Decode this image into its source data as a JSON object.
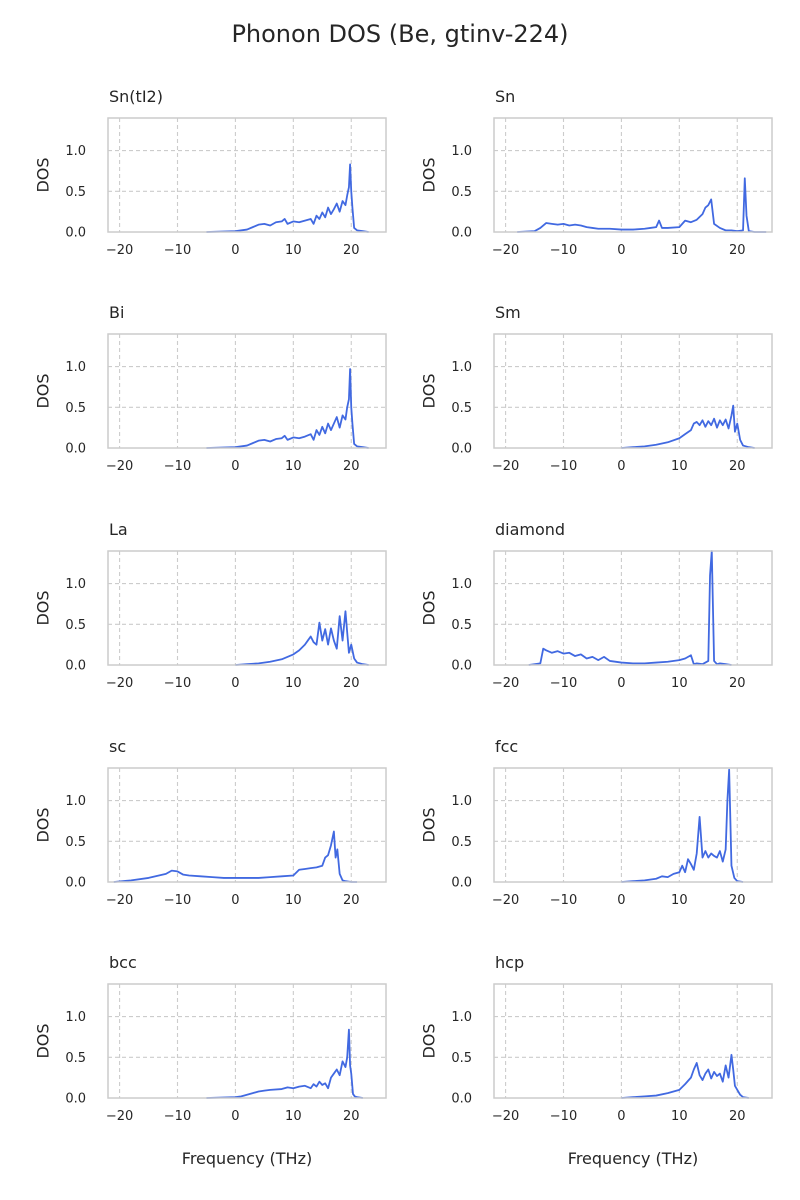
{
  "suptitle": "Phonon DOS (Be, gtinv-224)",
  "line_color": "#4169E1",
  "chart_data": [
    {
      "type": "line",
      "title": "Sn(tI2)",
      "xlabel": "",
      "ylabel": "DOS",
      "xlim": [
        -22,
        26
      ],
      "ylim": [
        0,
        1.4
      ],
      "xticks": [
        -20,
        -10,
        0,
        10,
        20
      ],
      "yticks": [
        0.0,
        0.5,
        1.0
      ],
      "grid": "dashed",
      "series": [
        {
          "x": [
            -5,
            0,
            2,
            3,
            4,
            5,
            6,
            7,
            8,
            8.5,
            9,
            10,
            11,
            12,
            13,
            13.5,
            14,
            14.5,
            15,
            15.5,
            16,
            16.5,
            17,
            17.5,
            18,
            18.5,
            19,
            19.3,
            19.6,
            19.8,
            20,
            20.2,
            20.5,
            21,
            22,
            23
          ],
          "y": [
            0,
            0.01,
            0.03,
            0.06,
            0.09,
            0.1,
            0.08,
            0.12,
            0.13,
            0.16,
            0.1,
            0.13,
            0.12,
            0.14,
            0.16,
            0.1,
            0.2,
            0.16,
            0.24,
            0.18,
            0.3,
            0.22,
            0.28,
            0.35,
            0.25,
            0.38,
            0.33,
            0.45,
            0.55,
            0.83,
            0.5,
            0.3,
            0.05,
            0.02,
            0.01,
            0
          ]
        }
      ]
    },
    {
      "type": "line",
      "title": "Sn",
      "xlabel": "",
      "ylabel": "DOS",
      "xlim": [
        -22,
        26
      ],
      "ylim": [
        0,
        1.4
      ],
      "xticks": [
        -20,
        -10,
        0,
        10,
        20
      ],
      "yticks": [
        0.0,
        0.5,
        1.0
      ],
      "grid": "dashed",
      "series": [
        {
          "x": [
            -18,
            -15,
            -14,
            -13,
            -12,
            -11,
            -10,
            -9,
            -8,
            -7,
            -6,
            -5,
            -4,
            -2,
            0,
            2,
            4,
            5,
            6,
            6.5,
            7,
            8,
            10,
            11,
            12,
            13,
            14,
            14.5,
            15,
            15.5,
            16,
            17,
            18,
            19,
            20,
            21,
            21.3,
            21.6,
            22,
            23,
            25
          ],
          "y": [
            0,
            0.01,
            0.05,
            0.11,
            0.1,
            0.09,
            0.1,
            0.08,
            0.09,
            0.08,
            0.06,
            0.05,
            0.04,
            0.04,
            0.03,
            0.03,
            0.04,
            0.05,
            0.06,
            0.14,
            0.05,
            0.05,
            0.06,
            0.14,
            0.12,
            0.15,
            0.22,
            0.3,
            0.33,
            0.4,
            0.1,
            0.05,
            0.02,
            0.02,
            0.01,
            0.02,
            0.66,
            0.2,
            0.01,
            0,
            0
          ]
        }
      ]
    },
    {
      "type": "line",
      "title": "Bi",
      "xlabel": "",
      "ylabel": "DOS",
      "xlim": [
        -22,
        26
      ],
      "ylim": [
        0,
        1.4
      ],
      "xticks": [
        -20,
        -10,
        0,
        10,
        20
      ],
      "yticks": [
        0.0,
        0.5,
        1.0
      ],
      "grid": "dashed",
      "series": [
        {
          "x": [
            -5,
            0,
            2,
            3,
            4,
            5,
            6,
            7,
            8,
            8.5,
            9,
            10,
            11,
            12,
            13,
            13.5,
            14,
            14.5,
            15,
            15.5,
            16,
            16.5,
            17,
            17.5,
            18,
            18.5,
            19,
            19.3,
            19.6,
            19.8,
            20,
            20.2,
            20.5,
            21,
            22,
            23
          ],
          "y": [
            0,
            0.01,
            0.03,
            0.06,
            0.09,
            0.1,
            0.08,
            0.11,
            0.12,
            0.15,
            0.1,
            0.13,
            0.12,
            0.14,
            0.17,
            0.1,
            0.22,
            0.16,
            0.26,
            0.18,
            0.3,
            0.22,
            0.3,
            0.38,
            0.25,
            0.4,
            0.35,
            0.5,
            0.6,
            0.97,
            0.5,
            0.3,
            0.05,
            0.02,
            0.01,
            0
          ]
        }
      ]
    },
    {
      "type": "line",
      "title": "Sm",
      "xlabel": "",
      "ylabel": "DOS",
      "xlim": [
        -22,
        26
      ],
      "ylim": [
        0,
        1.4
      ],
      "xticks": [
        -20,
        -10,
        0,
        10,
        20
      ],
      "yticks": [
        0.0,
        0.5,
        1.0
      ],
      "grid": "dashed",
      "series": [
        {
          "x": [
            0,
            2,
            4,
            6,
            8,
            10,
            11,
            12,
            12.5,
            13,
            13.5,
            14,
            14.5,
            15,
            15.5,
            16,
            16.5,
            17,
            17.5,
            18,
            18.5,
            19,
            19.3,
            19.6,
            20,
            20.5,
            21,
            22,
            23
          ],
          "y": [
            0,
            0.01,
            0.02,
            0.04,
            0.07,
            0.12,
            0.17,
            0.22,
            0.3,
            0.32,
            0.28,
            0.34,
            0.26,
            0.33,
            0.28,
            0.36,
            0.25,
            0.34,
            0.28,
            0.35,
            0.24,
            0.4,
            0.52,
            0.2,
            0.3,
            0.1,
            0.03,
            0.01,
            0
          ]
        }
      ]
    },
    {
      "type": "line",
      "title": "La",
      "xlabel": "",
      "ylabel": "DOS",
      "xlim": [
        -22,
        26
      ],
      "ylim": [
        0,
        1.4
      ],
      "xticks": [
        -20,
        -10,
        0,
        10,
        20
      ],
      "yticks": [
        0.0,
        0.5,
        1.0
      ],
      "grid": "dashed",
      "series": [
        {
          "x": [
            0,
            2,
            4,
            6,
            8,
            10,
            11,
            12,
            12.5,
            13,
            13.5,
            14,
            14.5,
            15,
            15.5,
            16,
            16.5,
            17,
            17.5,
            18,
            18.5,
            19,
            19.3,
            19.6,
            20,
            20.5,
            21,
            22,
            23
          ],
          "y": [
            0,
            0.01,
            0.02,
            0.04,
            0.07,
            0.13,
            0.18,
            0.25,
            0.3,
            0.35,
            0.28,
            0.25,
            0.52,
            0.3,
            0.44,
            0.25,
            0.45,
            0.3,
            0.2,
            0.6,
            0.3,
            0.66,
            0.4,
            0.15,
            0.25,
            0.08,
            0.03,
            0.01,
            0
          ]
        }
      ]
    },
    {
      "type": "line",
      "title": "diamond",
      "xlabel": "",
      "ylabel": "DOS",
      "xlim": [
        -22,
        26
      ],
      "ylim": [
        0,
        1.4
      ],
      "xticks": [
        -20,
        -10,
        0,
        10,
        20
      ],
      "yticks": [
        0.0,
        0.5,
        1.0
      ],
      "grid": "dashed",
      "series": [
        {
          "x": [
            -16,
            -14,
            -13.5,
            -13,
            -12,
            -11,
            -10,
            -9,
            -8,
            -7,
            -6,
            -5,
            -4,
            -3,
            -2,
            0,
            2,
            4,
            6,
            8,
            10,
            11,
            12,
            12.5,
            13,
            14,
            15,
            15.3,
            15.6,
            16,
            16.5,
            17,
            18,
            19
          ],
          "y": [
            0,
            0.02,
            0.2,
            0.18,
            0.15,
            0.17,
            0.14,
            0.15,
            0.11,
            0.13,
            0.08,
            0.1,
            0.06,
            0.1,
            0.05,
            0.03,
            0.02,
            0.02,
            0.03,
            0.04,
            0.06,
            0.08,
            0.12,
            0.01,
            0.02,
            0.01,
            0.05,
            1.1,
            1.4,
            0.05,
            0.01,
            0.02,
            0.01,
            0
          ]
        }
      ]
    },
    {
      "type": "line",
      "title": "sc",
      "xlabel": "",
      "ylabel": "DOS",
      "xlim": [
        -22,
        26
      ],
      "ylim": [
        0,
        1.4
      ],
      "xticks": [
        -20,
        -10,
        0,
        10,
        20
      ],
      "yticks": [
        0.0,
        0.5,
        1.0
      ],
      "grid": "dashed",
      "series": [
        {
          "x": [
            -21,
            -18,
            -15,
            -12,
            -11,
            -10,
            -9,
            -8,
            -6,
            -4,
            -2,
            0,
            2,
            4,
            6,
            8,
            10,
            11,
            12,
            13,
            14,
            15,
            15.5,
            16,
            16.5,
            17,
            17.3,
            17.6,
            18,
            18.5,
            19,
            20,
            21
          ],
          "y": [
            0,
            0.02,
            0.05,
            0.1,
            0.14,
            0.13,
            0.09,
            0.08,
            0.07,
            0.06,
            0.05,
            0.05,
            0.05,
            0.05,
            0.06,
            0.07,
            0.08,
            0.15,
            0.16,
            0.17,
            0.18,
            0.2,
            0.3,
            0.33,
            0.45,
            0.62,
            0.3,
            0.4,
            0.1,
            0.02,
            0.01,
            0,
            0
          ]
        }
      ]
    },
    {
      "type": "line",
      "title": "fcc",
      "xlabel": "",
      "ylabel": "DOS",
      "xlim": [
        -22,
        26
      ],
      "ylim": [
        0,
        1.4
      ],
      "xticks": [
        -20,
        -10,
        0,
        10,
        20
      ],
      "yticks": [
        0.0,
        0.5,
        1.0
      ],
      "grid": "dashed",
      "series": [
        {
          "x": [
            0,
            2,
            4,
            6,
            7,
            8,
            9,
            10,
            10.5,
            11,
            11.5,
            12,
            12.5,
            13,
            13.5,
            14,
            14.5,
            15,
            15.5,
            16,
            16.5,
            17,
            17.5,
            18,
            18.3,
            18.6,
            19,
            19.5,
            20,
            21
          ],
          "y": [
            0,
            0.01,
            0.02,
            0.04,
            0.07,
            0.06,
            0.1,
            0.12,
            0.2,
            0.12,
            0.28,
            0.22,
            0.15,
            0.35,
            0.8,
            0.3,
            0.38,
            0.3,
            0.35,
            0.32,
            0.3,
            0.38,
            0.25,
            0.4,
            1.0,
            1.38,
            0.2,
            0.05,
            0.01,
            0
          ]
        }
      ]
    },
    {
      "type": "line",
      "title": "bcc",
      "xlabel": "Frequency (THz)",
      "ylabel": "DOS",
      "xlim": [
        -22,
        26
      ],
      "ylim": [
        0,
        1.4
      ],
      "xticks": [
        -20,
        -10,
        0,
        10,
        20
      ],
      "yticks": [
        0.0,
        0.5,
        1.0
      ],
      "grid": "dashed",
      "series": [
        {
          "x": [
            -5,
            0,
            1,
            2,
            3,
            4,
            5,
            6,
            8,
            9,
            10,
            11,
            12,
            13,
            13.5,
            14,
            14.5,
            15,
            15.5,
            16,
            16.5,
            17,
            17.5,
            18,
            18.5,
            19,
            19.3,
            19.6,
            19.8,
            20,
            20.3,
            20.6,
            21,
            22
          ],
          "y": [
            0,
            0.01,
            0.02,
            0.04,
            0.06,
            0.08,
            0.09,
            0.1,
            0.11,
            0.13,
            0.12,
            0.14,
            0.15,
            0.12,
            0.17,
            0.14,
            0.2,
            0.16,
            0.18,
            0.12,
            0.25,
            0.3,
            0.35,
            0.28,
            0.45,
            0.38,
            0.5,
            0.84,
            0.4,
            0.3,
            0.05,
            0.02,
            0.01,
            0
          ]
        }
      ]
    },
    {
      "type": "line",
      "title": "hcp",
      "xlabel": "Frequency (THz)",
      "ylabel": "DOS",
      "xlim": [
        -22,
        26
      ],
      "ylim": [
        0,
        1.4
      ],
      "xticks": [
        -20,
        -10,
        0,
        10,
        20
      ],
      "yticks": [
        0.0,
        0.5,
        1.0
      ],
      "grid": "dashed",
      "series": [
        {
          "x": [
            0,
            2,
            4,
            6,
            8,
            10,
            11,
            12,
            12.5,
            13,
            13.5,
            14,
            14.5,
            15,
            15.5,
            16,
            16.5,
            17,
            17.5,
            18,
            18.5,
            19,
            19.3,
            19.6,
            20,
            20.5,
            21,
            22
          ],
          "y": [
            0,
            0.01,
            0.02,
            0.03,
            0.06,
            0.1,
            0.17,
            0.25,
            0.35,
            0.43,
            0.28,
            0.22,
            0.3,
            0.35,
            0.24,
            0.32,
            0.27,
            0.3,
            0.2,
            0.4,
            0.25,
            0.53,
            0.35,
            0.15,
            0.1,
            0.04,
            0.01,
            0
          ]
        }
      ]
    }
  ]
}
